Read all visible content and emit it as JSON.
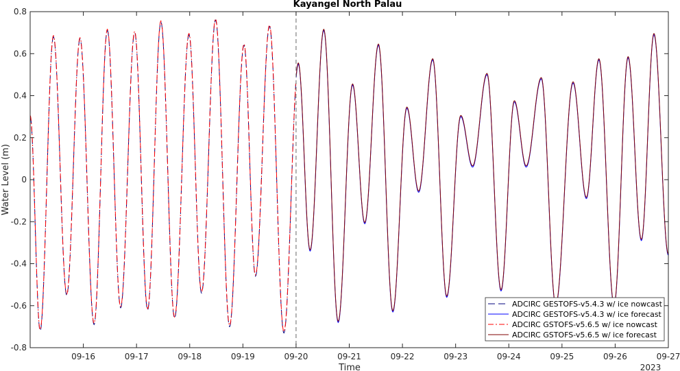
{
  "chart_data": {
    "type": "line",
    "title": "Kayangel North Palau",
    "xlabel": "Time",
    "ylabel": "Water Level (m)",
    "year_label": "2023",
    "xlim": [
      "2023-09-15 00:00",
      "2023-09-27 00:00"
    ],
    "ylim": [
      -0.8,
      0.8
    ],
    "y_ticks": [
      -0.8,
      -0.6,
      -0.4,
      -0.2,
      0,
      0.2,
      0.4,
      0.6,
      0.8
    ],
    "y_tick_labels": [
      "-0.8",
      "-0.6",
      "-0.4",
      "-0.2",
      "0",
      "0.2",
      "0.4",
      "0.6",
      "0.8"
    ],
    "x_ticks": [
      "2023-09-16",
      "2023-09-17",
      "2023-09-18",
      "2023-09-19",
      "2023-09-20",
      "2023-09-21",
      "2023-09-22",
      "2023-09-23",
      "2023-09-24",
      "2023-09-25",
      "2023-09-26",
      "2023-09-27"
    ],
    "x_tick_labels": [
      "09-16",
      "09-17",
      "09-18",
      "09-19",
      "09-20",
      "09-21",
      "09-22",
      "09-23",
      "09-24",
      "09-25",
      "09-26",
      "09-27"
    ],
    "forecast_start": "2023-09-20 00:00",
    "legend_position": "bottom-right",
    "grid": false,
    "extrema": [
      {
        "t": "2023-09-15 00:00",
        "v": 0.3
      },
      {
        "t": "2023-09-15 04:30",
        "v": -0.72
      },
      {
        "t": "2023-09-15 10:30",
        "v": 0.68
      },
      {
        "t": "2023-09-15 16:30",
        "v": -0.55
      },
      {
        "t": "2023-09-15 22:30",
        "v": 0.67
      },
      {
        "t": "2023-09-16 04:50",
        "v": -0.69
      },
      {
        "t": "2023-09-16 10:50",
        "v": 0.71
      },
      {
        "t": "2023-09-16 16:50",
        "v": -0.61
      },
      {
        "t": "2023-09-16 23:10",
        "v": 0.7
      },
      {
        "t": "2023-09-17 05:00",
        "v": -0.62
      },
      {
        "t": "2023-09-17 11:00",
        "v": 0.75
      },
      {
        "t": "2023-09-17 17:10",
        "v": -0.66
      },
      {
        "t": "2023-09-17 23:40",
        "v": 0.69
      },
      {
        "t": "2023-09-18 05:20",
        "v": -0.54
      },
      {
        "t": "2023-09-18 11:40",
        "v": 0.76
      },
      {
        "t": "2023-09-18 18:00",
        "v": -0.7
      },
      {
        "t": "2023-09-19 00:30",
        "v": 0.64
      },
      {
        "t": "2023-09-19 05:40",
        "v": -0.46
      },
      {
        "t": "2023-09-19 12:00",
        "v": 0.73
      },
      {
        "t": "2023-09-19 18:30",
        "v": -0.73
      },
      {
        "t": "2023-09-20 01:00",
        "v": 0.55
      },
      {
        "t": "2023-09-20 06:20",
        "v": -0.34
      },
      {
        "t": "2023-09-20 12:30",
        "v": 0.71
      },
      {
        "t": "2023-09-20 19:00",
        "v": -0.68
      },
      {
        "t": "2023-09-21 01:30",
        "v": 0.45
      },
      {
        "t": "2023-09-21 07:00",
        "v": -0.21
      },
      {
        "t": "2023-09-21 13:10",
        "v": 0.64
      },
      {
        "t": "2023-09-21 19:40",
        "v": -0.63
      },
      {
        "t": "2023-09-22 02:00",
        "v": 0.34
      },
      {
        "t": "2023-09-22 07:20",
        "v": -0.06
      },
      {
        "t": "2023-09-22 13:40",
        "v": 0.57
      },
      {
        "t": "2023-09-22 20:00",
        "v": -0.56
      },
      {
        "t": "2023-09-23 02:20",
        "v": 0.3
      },
      {
        "t": "2023-09-23 07:40",
        "v": 0.06
      },
      {
        "t": "2023-09-23 14:10",
        "v": 0.5
      },
      {
        "t": "2023-09-23 20:30",
        "v": -0.53
      },
      {
        "t": "2023-09-24 02:30",
        "v": 0.37
      },
      {
        "t": "2023-09-24 07:50",
        "v": 0.06
      },
      {
        "t": "2023-09-24 14:40",
        "v": 0.48
      },
      {
        "t": "2023-09-24 21:10",
        "v": -0.6
      },
      {
        "t": "2023-09-25 05:00",
        "v": 0.46
      },
      {
        "t": "2023-09-25 11:00",
        "v": -0.09
      },
      {
        "t": "2023-09-25 16:40",
        "v": 0.57
      },
      {
        "t": "2023-09-25 23:30",
        "v": -0.6
      },
      {
        "t": "2023-09-26 05:50",
        "v": 0.58
      },
      {
        "t": "2023-09-26 11:50",
        "v": -0.29
      },
      {
        "t": "2023-09-26 17:30",
        "v": 0.69
      },
      {
        "t": "2023-09-27 00:00",
        "v": -0.36
      }
    ],
    "series": [
      {
        "name": "ADCIRC GESTOFS-v5.4.3 w/ ice nowcast",
        "color": "#00007f",
        "dash": "long-dash",
        "period": "nowcast"
      },
      {
        "name": "ADCIRC GESTOFS-v5.4.3 w/ ice forecast",
        "color": "#0000ff",
        "dash": "solid",
        "period": "forecast"
      },
      {
        "name": "ADCIRC GSTOFS-v5.6.5 w/ ice nowcast",
        "color": "#ff0000",
        "dash": "dash-dot",
        "period": "nowcast"
      },
      {
        "name": "ADCIRC GSTOFS-v5.6.5 w/ ice forecast",
        "color": "#7f0000",
        "dash": "solid",
        "period": "forecast"
      }
    ]
  }
}
